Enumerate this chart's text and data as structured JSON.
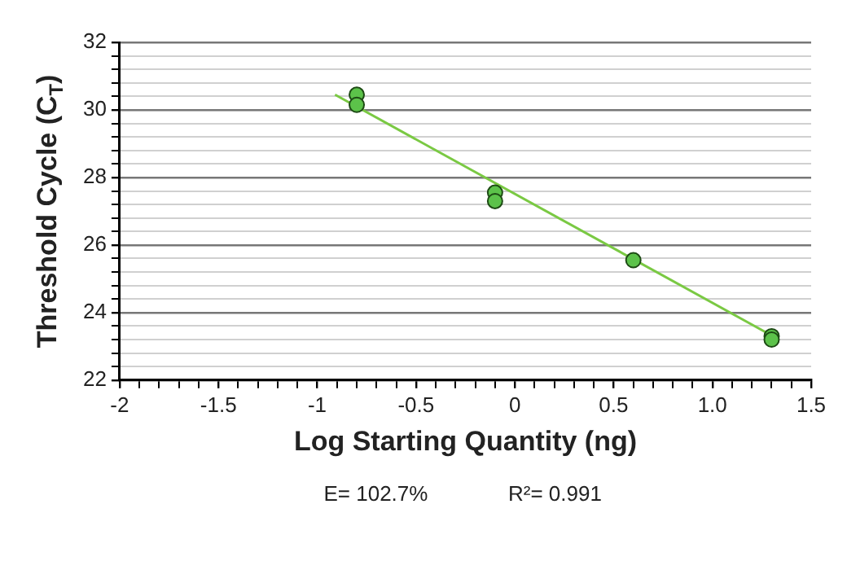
{
  "chart_data": {
    "type": "scatter",
    "xlabel": "Log Starting Quantity (ng)",
    "ylabel": "Threshold Cycle (C$_{T}$)",
    "annotations": [
      "E= 102.7%",
      "R²= 0.991"
    ],
    "xlim": [
      -2,
      1.5
    ],
    "ylim": [
      22,
      32
    ],
    "xticks": [
      -2,
      {
        "value": -1.9,
        "label": null
      },
      {
        "value": -1.8,
        "label": null
      },
      {
        "value": -1.7,
        "label": null
      },
      {
        "value": -1.6,
        "label": null
      },
      -1.5,
      {
        "value": -1.4,
        "label": null
      },
      {
        "value": -1.3,
        "label": null
      },
      {
        "value": -1.2,
        "label": null
      },
      {
        "value": -1.1,
        "label": null
      },
      -1,
      {
        "value": -0.9,
        "label": null
      },
      {
        "value": -0.8,
        "label": null
      },
      {
        "value": -0.7,
        "label": null
      },
      {
        "value": -0.6,
        "label": null
      },
      -0.5,
      {
        "value": -0.4,
        "label": null
      },
      {
        "value": -0.3,
        "label": null
      },
      {
        "value": -0.2,
        "label": null
      },
      {
        "value": -0.1,
        "label": null
      },
      0,
      {
        "value": 0.1,
        "label": null
      },
      {
        "value": 0.2,
        "label": null
      },
      {
        "value": 0.3,
        "label": null
      },
      {
        "value": 0.4,
        "label": null
      },
      0.5,
      {
        "value": 0.6,
        "label": null
      },
      {
        "value": 0.7,
        "label": null
      },
      {
        "value": 0.8,
        "label": null
      },
      {
        "value": 0.9,
        "label": null
      },
      {
        "value": 1,
        "label": "1.0"
      },
      {
        "value": 1.1,
        "label": null
      },
      {
        "value": 1.2,
        "label": null
      },
      {
        "value": 1.3,
        "label": null
      },
      {
        "value": 1.4,
        "label": null
      },
      1.5
    ],
    "yticks": [
      22,
      {
        "value": 22.4,
        "label": null
      },
      {
        "value": 22.8,
        "label": null
      },
      {
        "value": 23.2,
        "label": null
      },
      {
        "value": 23.6,
        "label": null
      },
      24,
      {
        "value": 24.4,
        "label": null
      },
      {
        "value": 24.8,
        "label": null
      },
      {
        "value": 25.2,
        "label": null
      },
      {
        "value": 25.6,
        "label": null
      },
      26,
      {
        "value": 26.4,
        "label": null
      },
      {
        "value": 26.8,
        "label": null
      },
      {
        "value": 27.2,
        "label": null
      },
      {
        "value": 27.6,
        "label": null
      },
      28,
      {
        "value": 28.4,
        "label": null
      },
      {
        "value": 28.8,
        "label": null
      },
      {
        "value": 29.2,
        "label": null
      },
      {
        "value": 29.6,
        "label": null
      },
      30,
      {
        "value": 30.4,
        "label": null
      },
      {
        "value": 30.8,
        "label": null
      },
      {
        "value": 31.2,
        "label": null
      },
      {
        "value": 31.6,
        "label": null
      },
      32
    ],
    "grid": "y",
    "legend": false,
    "marker": "circle",
    "series": [
      {
        "color": "#5cc24a",
        "x": [
          -0.8,
          -0.8,
          -0.1,
          -0.1,
          0.6,
          1.3,
          1.3
        ],
        "values": [
          30.45,
          30.15,
          27.55,
          27.3,
          25.55,
          23.3,
          23.2
        ]
      },
      {
        "type": "line",
        "color": "#7ac943",
        "x": [
          -0.91,
          1.3
        ],
        "values": [
          30.45,
          23.32
        ],
        "marker": "none",
        "line_style": "solid"
      }
    ]
  }
}
